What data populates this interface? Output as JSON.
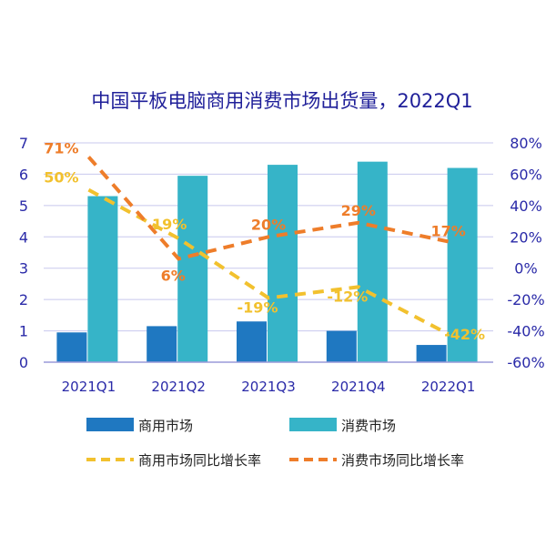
{
  "chart_data": {
    "type": "bar",
    "title": "中国平板电脑商用消费市场出货量，2022Q1",
    "categories": [
      "2021Q1",
      "2021Q2",
      "2021Q3",
      "2021Q4",
      "2022Q1"
    ],
    "y_left": {
      "ylim": [
        0,
        7
      ],
      "ticks": [
        "0",
        "1",
        "2",
        "3",
        "4",
        "5",
        "6",
        "7"
      ]
    },
    "y_right": {
      "ylim": [
        -60,
        80
      ],
      "ticks": [
        "-60%",
        "-40%",
        "-20%",
        "0%",
        "20%",
        "40%",
        "60%",
        "80%"
      ]
    },
    "series": [
      {
        "name": "商用市场",
        "type": "bar",
        "axis": "left",
        "color": "#1f78c1",
        "values": [
          0.95,
          1.15,
          1.3,
          1.0,
          0.55
        ]
      },
      {
        "name": "消费市场",
        "type": "bar",
        "axis": "left",
        "color": "#36b4c8",
        "values": [
          5.3,
          5.95,
          6.3,
          6.4,
          6.2
        ]
      },
      {
        "name": "商用市场同比增长率",
        "type": "line",
        "axis": "right",
        "style": "dashed",
        "color": "#f2c12e",
        "values": [
          50,
          19,
          -19,
          -12,
          -42
        ],
        "labels": [
          "50%",
          "19%",
          "-19%",
          "-12%",
          "-42%"
        ]
      },
      {
        "name": "消费市场同比增长率",
        "type": "line",
        "axis": "right",
        "style": "dashed",
        "color": "#ee7d2a",
        "values": [
          71,
          6,
          20,
          29,
          17
        ],
        "labels": [
          "71%",
          "6%",
          "20%",
          "29%",
          "17%"
        ]
      }
    ],
    "legend_position": "bottom",
    "grid": true,
    "colors": {
      "axis_text": "#2a2aa8",
      "grid": "#c8c8ee",
      "title": "#1f1f99"
    }
  }
}
